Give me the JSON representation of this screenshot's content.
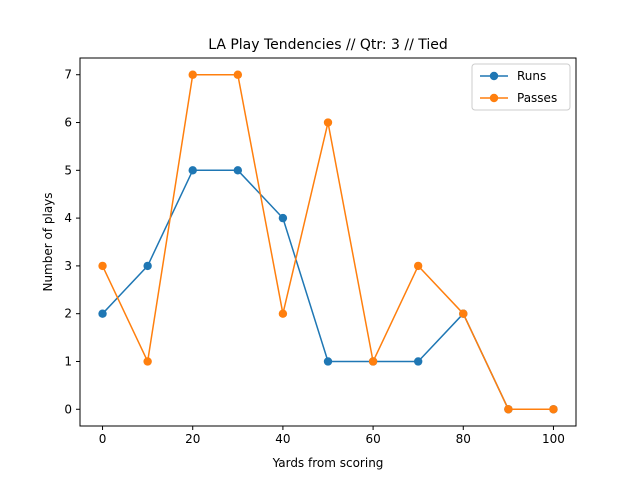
{
  "chart_data": {
    "type": "line",
    "title": "LA Play Tendencies // Qtr: 3 // Tied",
    "xlabel": "Yards from scoring",
    "ylabel": "Number of plays",
    "xlim": [
      -5,
      105
    ],
    "ylim": [
      -0.35,
      7.35
    ],
    "xticks": [
      0,
      20,
      40,
      60,
      80,
      100
    ],
    "yticks": [
      0,
      1,
      2,
      3,
      4,
      5,
      6,
      7
    ],
    "x": [
      0,
      10,
      20,
      30,
      40,
      50,
      60,
      70,
      80,
      90,
      100
    ],
    "series": [
      {
        "name": "Runs",
        "color": "#1f77b4",
        "values": [
          2,
          3,
          5,
          5,
          4,
          1,
          1,
          1,
          2,
          0,
          0
        ]
      },
      {
        "name": "Passes",
        "color": "#ff7f0e",
        "values": [
          3,
          1,
          7,
          7,
          2,
          6,
          1,
          3,
          2,
          0,
          0
        ]
      }
    ],
    "grid": false,
    "legend": "top-right",
    "marker": "circle"
  }
}
